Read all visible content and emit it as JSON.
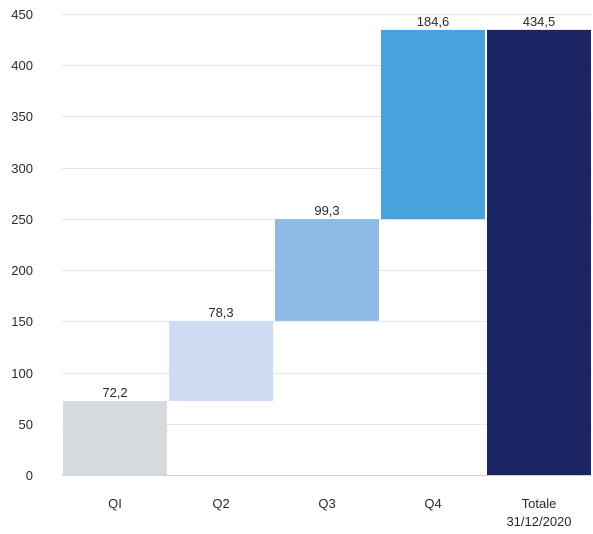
{
  "chart_data": {
    "type": "bar",
    "variant": "waterfall",
    "title": "",
    "xlabel": "",
    "ylabel": "",
    "ylim": [
      0,
      450
    ],
    "yticks": [
      0,
      50,
      100,
      150,
      200,
      250,
      300,
      350,
      400,
      450
    ],
    "ytick_labels": [
      "0",
      "50",
      "100",
      "150",
      "200",
      "250",
      "300",
      "350",
      "400",
      "450"
    ],
    "grid": true,
    "legend": "none",
    "bars": [
      {
        "category": [
          "QI"
        ],
        "start": 0,
        "end": 72.2,
        "label": "72,2",
        "color": "#d6dadf"
      },
      {
        "category": [
          "Q2"
        ],
        "start": 72.2,
        "end": 150.5,
        "label": "78,3",
        "color": "#cddcf2"
      },
      {
        "category": [
          "Q3"
        ],
        "start": 150.5,
        "end": 249.8,
        "label": "99,3",
        "color": "#8fb9e6"
      },
      {
        "category": [
          "Q4"
        ],
        "start": 249.8,
        "end": 434.5,
        "label": "184,6",
        "color": "#4aa2dc"
      },
      {
        "category": [
          "Totale",
          "31/12/2020"
        ],
        "start": 0,
        "end": 434.5,
        "label": "434,5",
        "color": "#1b2563"
      }
    ]
  }
}
